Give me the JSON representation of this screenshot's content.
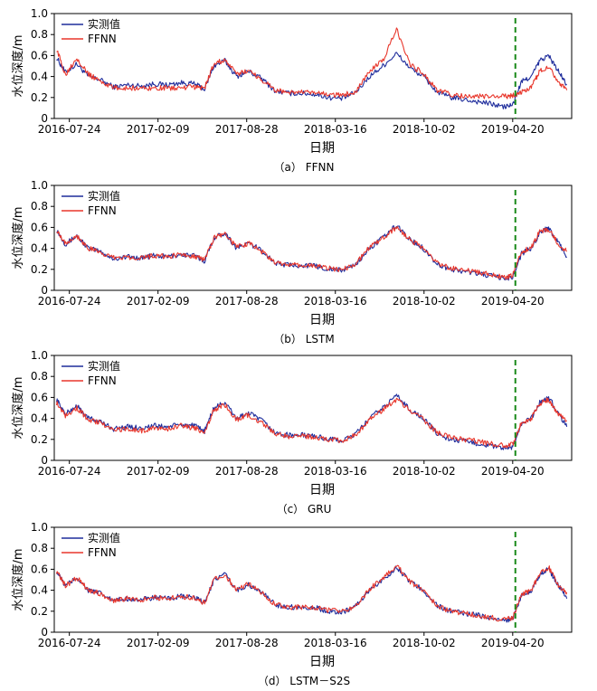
{
  "chart_data": [
    {
      "type": "line",
      "caption": "（a） FFNN",
      "xlabel": "日期",
      "ylabel": "水位深度/m",
      "ylim": [
        0,
        1.0
      ],
      "yticks": [
        "0",
        "0.2",
        "0.4",
        "0.6",
        "0.8",
        "1.0"
      ],
      "x_tick_labels": [
        "2016-07-24",
        "2017-02-09",
        "2017-08-28",
        "2018-03-16",
        "2018-10-02",
        "2019-04-20"
      ],
      "x_range": [
        "2016-06-20",
        "2019-08-31"
      ],
      "split_date": "2019-04-26",
      "legend_position": "top-left",
      "series": [
        {
          "name": "实测值",
          "color": "#1f2d9c",
          "x": [
            "2016-06-25",
            "2016-07-15",
            "2016-08-10",
            "2016-09-05",
            "2016-10-01",
            "2016-11-01",
            "2016-12-01",
            "2017-01-01",
            "2017-02-01",
            "2017-03-01",
            "2017-04-01",
            "2017-05-01",
            "2017-05-25",
            "2017-06-15",
            "2017-07-10",
            "2017-08-05",
            "2017-09-01",
            "2017-10-01",
            "2017-11-01",
            "2017-12-01",
            "2018-01-01",
            "2018-02-01",
            "2018-03-01",
            "2018-04-01",
            "2018-05-01",
            "2018-06-01",
            "2018-07-01",
            "2018-08-01",
            "2018-09-01",
            "2018-10-01",
            "2018-11-01",
            "2018-12-01",
            "2019-01-01",
            "2019-02-01",
            "2019-03-01",
            "2019-04-01",
            "2019-04-20",
            "2019-05-10",
            "2019-06-01",
            "2019-06-20",
            "2019-07-10",
            "2019-08-01",
            "2019-08-20"
          ],
          "values": [
            0.58,
            0.44,
            0.52,
            0.4,
            0.37,
            0.3,
            0.32,
            0.31,
            0.33,
            0.32,
            0.34,
            0.33,
            0.28,
            0.5,
            0.55,
            0.4,
            0.45,
            0.38,
            0.26,
            0.24,
            0.24,
            0.23,
            0.2,
            0.19,
            0.25,
            0.4,
            0.5,
            0.62,
            0.48,
            0.4,
            0.25,
            0.2,
            0.18,
            0.16,
            0.14,
            0.11,
            0.13,
            0.35,
            0.4,
            0.55,
            0.6,
            0.45,
            0.32
          ]
        },
        {
          "name": "FFNN",
          "color": "#e8372c",
          "x": [
            "2016-06-25",
            "2016-07-15",
            "2016-08-10",
            "2016-09-05",
            "2016-10-01",
            "2016-11-01",
            "2016-12-01",
            "2017-01-01",
            "2017-02-01",
            "2017-03-01",
            "2017-04-01",
            "2017-05-01",
            "2017-05-25",
            "2017-06-15",
            "2017-07-10",
            "2017-08-05",
            "2017-09-01",
            "2017-10-01",
            "2017-11-01",
            "2017-12-01",
            "2018-01-01",
            "2018-02-01",
            "2018-03-01",
            "2018-04-01",
            "2018-05-01",
            "2018-06-01",
            "2018-07-01",
            "2018-08-01",
            "2018-09-01",
            "2018-10-01",
            "2018-11-01",
            "2018-12-01",
            "2019-01-01",
            "2019-02-01",
            "2019-03-01",
            "2019-04-01",
            "2019-04-20",
            "2019-05-10",
            "2019-06-01",
            "2019-06-20",
            "2019-07-10",
            "2019-08-01",
            "2019-08-20"
          ],
          "values": [
            0.66,
            0.42,
            0.58,
            0.42,
            0.36,
            0.29,
            0.29,
            0.29,
            0.29,
            0.29,
            0.29,
            0.3,
            0.29,
            0.52,
            0.56,
            0.42,
            0.46,
            0.37,
            0.27,
            0.25,
            0.25,
            0.24,
            0.23,
            0.22,
            0.26,
            0.45,
            0.55,
            0.85,
            0.52,
            0.42,
            0.27,
            0.23,
            0.21,
            0.21,
            0.21,
            0.21,
            0.22,
            0.25,
            0.3,
            0.45,
            0.5,
            0.35,
            0.27
          ]
        }
      ]
    },
    {
      "type": "line",
      "caption": "（b） LSTM",
      "xlabel": "日期",
      "ylabel": "水位深度/m",
      "ylim": [
        0,
        1.0
      ],
      "yticks": [
        "0",
        "0.2",
        "0.4",
        "0.6",
        "0.8",
        "1.0"
      ],
      "x_tick_labels": [
        "2016-07-24",
        "2017-02-09",
        "2017-08-28",
        "2018-03-16",
        "2018-10-02",
        "2019-04-20"
      ],
      "x_range": [
        "2016-06-20",
        "2019-08-31"
      ],
      "split_date": "2019-04-26",
      "legend_position": "top-left",
      "series": [
        {
          "name": "实测值",
          "color": "#1f2d9c",
          "x": [
            "2016-06-25",
            "2016-07-15",
            "2016-08-10",
            "2016-09-05",
            "2016-10-01",
            "2016-11-01",
            "2016-12-01",
            "2017-01-01",
            "2017-02-01",
            "2017-03-01",
            "2017-04-01",
            "2017-05-01",
            "2017-05-25",
            "2017-06-15",
            "2017-07-10",
            "2017-08-05",
            "2017-09-01",
            "2017-10-01",
            "2017-11-01",
            "2017-12-01",
            "2018-01-01",
            "2018-02-01",
            "2018-03-01",
            "2018-04-01",
            "2018-05-01",
            "2018-06-01",
            "2018-07-01",
            "2018-08-01",
            "2018-09-01",
            "2018-10-01",
            "2018-11-01",
            "2018-12-01",
            "2019-01-01",
            "2019-02-01",
            "2019-03-01",
            "2019-04-01",
            "2019-04-20",
            "2019-05-10",
            "2019-06-01",
            "2019-06-20",
            "2019-07-10",
            "2019-08-01",
            "2019-08-20"
          ],
          "values": [
            0.58,
            0.44,
            0.52,
            0.4,
            0.37,
            0.3,
            0.32,
            0.31,
            0.33,
            0.32,
            0.34,
            0.33,
            0.28,
            0.5,
            0.55,
            0.4,
            0.45,
            0.38,
            0.26,
            0.24,
            0.24,
            0.23,
            0.2,
            0.19,
            0.25,
            0.4,
            0.5,
            0.62,
            0.48,
            0.4,
            0.25,
            0.2,
            0.18,
            0.16,
            0.14,
            0.11,
            0.13,
            0.35,
            0.4,
            0.55,
            0.6,
            0.45,
            0.32
          ]
        },
        {
          "name": "FFNN",
          "color": "#e8372c",
          "x": [
            "2016-06-25",
            "2016-07-15",
            "2016-08-10",
            "2016-09-05",
            "2016-10-01",
            "2016-11-01",
            "2016-12-01",
            "2017-01-01",
            "2017-02-01",
            "2017-03-01",
            "2017-04-01",
            "2017-05-01",
            "2017-05-25",
            "2017-06-15",
            "2017-07-10",
            "2017-08-05",
            "2017-09-01",
            "2017-10-01",
            "2017-11-01",
            "2017-12-01",
            "2018-01-01",
            "2018-02-01",
            "2018-03-01",
            "2018-04-01",
            "2018-05-01",
            "2018-06-01",
            "2018-07-01",
            "2018-08-01",
            "2018-09-01",
            "2018-10-01",
            "2018-11-01",
            "2018-12-01",
            "2019-01-01",
            "2019-02-01",
            "2019-03-01",
            "2019-04-01",
            "2019-04-20",
            "2019-05-10",
            "2019-06-01",
            "2019-06-20",
            "2019-07-10",
            "2019-08-01",
            "2019-08-20"
          ],
          "values": [
            0.58,
            0.45,
            0.52,
            0.4,
            0.36,
            0.31,
            0.32,
            0.31,
            0.33,
            0.32,
            0.34,
            0.33,
            0.29,
            0.5,
            0.54,
            0.41,
            0.45,
            0.37,
            0.26,
            0.24,
            0.24,
            0.23,
            0.21,
            0.2,
            0.25,
            0.41,
            0.5,
            0.6,
            0.48,
            0.4,
            0.26,
            0.21,
            0.19,
            0.17,
            0.15,
            0.12,
            0.14,
            0.37,
            0.41,
            0.56,
            0.58,
            0.44,
            0.37
          ]
        }
      ]
    },
    {
      "type": "line",
      "caption": "（c） GRU",
      "xlabel": "日期",
      "ylabel": "水位深度/m",
      "ylim": [
        0,
        1.0
      ],
      "yticks": [
        "0",
        "0.2",
        "0.4",
        "0.6",
        "0.8",
        "1.0"
      ],
      "x_tick_labels": [
        "2016-07-24",
        "2017-02-09",
        "2017-08-28",
        "2018-03-16",
        "2018-10-02",
        "2019-04-20"
      ],
      "x_range": [
        "2016-06-20",
        "2019-08-31"
      ],
      "split_date": "2019-04-26",
      "legend_position": "top-left",
      "series": [
        {
          "name": "实测值",
          "color": "#1f2d9c",
          "x": [
            "2016-06-25",
            "2016-07-15",
            "2016-08-10",
            "2016-09-05",
            "2016-10-01",
            "2016-11-01",
            "2016-12-01",
            "2017-01-01",
            "2017-02-01",
            "2017-03-01",
            "2017-04-01",
            "2017-05-01",
            "2017-05-25",
            "2017-06-15",
            "2017-07-10",
            "2017-08-05",
            "2017-09-01",
            "2017-10-01",
            "2017-11-01",
            "2017-12-01",
            "2018-01-01",
            "2018-02-01",
            "2018-03-01",
            "2018-04-01",
            "2018-05-01",
            "2018-06-01",
            "2018-07-01",
            "2018-08-01",
            "2018-09-01",
            "2018-10-01",
            "2018-11-01",
            "2018-12-01",
            "2019-01-01",
            "2019-02-01",
            "2019-03-01",
            "2019-04-01",
            "2019-04-20",
            "2019-05-10",
            "2019-06-01",
            "2019-06-20",
            "2019-07-10",
            "2019-08-01",
            "2019-08-20"
          ],
          "values": [
            0.58,
            0.44,
            0.52,
            0.4,
            0.37,
            0.3,
            0.32,
            0.31,
            0.33,
            0.32,
            0.34,
            0.33,
            0.28,
            0.5,
            0.55,
            0.4,
            0.45,
            0.38,
            0.26,
            0.24,
            0.24,
            0.23,
            0.2,
            0.19,
            0.25,
            0.4,
            0.5,
            0.62,
            0.48,
            0.4,
            0.25,
            0.2,
            0.18,
            0.16,
            0.14,
            0.11,
            0.13,
            0.35,
            0.4,
            0.55,
            0.6,
            0.45,
            0.32
          ]
        },
        {
          "name": "FFNN",
          "color": "#e8372c",
          "x": [
            "2016-06-25",
            "2016-07-15",
            "2016-08-10",
            "2016-09-05",
            "2016-10-01",
            "2016-11-01",
            "2016-12-01",
            "2017-01-01",
            "2017-02-01",
            "2017-03-01",
            "2017-04-01",
            "2017-05-01",
            "2017-05-25",
            "2017-06-15",
            "2017-07-10",
            "2017-08-05",
            "2017-09-01",
            "2017-10-01",
            "2017-11-01",
            "2017-12-01",
            "2018-01-01",
            "2018-02-01",
            "2018-03-01",
            "2018-04-01",
            "2018-05-01",
            "2018-06-01",
            "2018-07-01",
            "2018-08-01",
            "2018-09-01",
            "2018-10-01",
            "2018-11-01",
            "2018-12-01",
            "2019-01-01",
            "2019-02-01",
            "2019-03-01",
            "2019-04-01",
            "2019-04-20",
            "2019-05-10",
            "2019-06-01",
            "2019-06-20",
            "2019-07-10",
            "2019-08-01",
            "2019-08-20"
          ],
          "values": [
            0.55,
            0.43,
            0.5,
            0.39,
            0.36,
            0.29,
            0.3,
            0.28,
            0.31,
            0.3,
            0.33,
            0.31,
            0.27,
            0.48,
            0.53,
            0.39,
            0.43,
            0.36,
            0.25,
            0.23,
            0.23,
            0.22,
            0.2,
            0.19,
            0.24,
            0.39,
            0.48,
            0.58,
            0.47,
            0.39,
            0.26,
            0.22,
            0.2,
            0.18,
            0.16,
            0.14,
            0.15,
            0.36,
            0.4,
            0.54,
            0.58,
            0.44,
            0.38
          ]
        }
      ]
    },
    {
      "type": "line",
      "caption": "（d） LSTM－S2S",
      "xlabel": "日期",
      "ylabel": "水位深度/m",
      "ylim": [
        0,
        1.0
      ],
      "yticks": [
        "0",
        "0.2",
        "0.4",
        "0.6",
        "0.8",
        "1.0"
      ],
      "x_tick_labels": [
        "2016-07-24",
        "2017-02-09",
        "2017-08-28",
        "2018-03-16",
        "2018-10-02",
        "2019-04-20"
      ],
      "x_range": [
        "2016-06-20",
        "2019-08-31"
      ],
      "split_date": "2019-04-26",
      "legend_position": "top-left",
      "series": [
        {
          "name": "实测值",
          "color": "#1f2d9c",
          "x": [
            "2016-06-25",
            "2016-07-15",
            "2016-08-10",
            "2016-09-05",
            "2016-10-01",
            "2016-11-01",
            "2016-12-01",
            "2017-01-01",
            "2017-02-01",
            "2017-03-01",
            "2017-04-01",
            "2017-05-01",
            "2017-05-25",
            "2017-06-15",
            "2017-07-10",
            "2017-08-05",
            "2017-09-01",
            "2017-10-01",
            "2017-11-01",
            "2017-12-01",
            "2018-01-01",
            "2018-02-01",
            "2018-03-01",
            "2018-04-01",
            "2018-05-01",
            "2018-06-01",
            "2018-07-01",
            "2018-08-01",
            "2018-09-01",
            "2018-10-01",
            "2018-11-01",
            "2018-12-01",
            "2019-01-01",
            "2019-02-01",
            "2019-03-01",
            "2019-04-01",
            "2019-04-20",
            "2019-05-10",
            "2019-06-01",
            "2019-06-20",
            "2019-07-10",
            "2019-08-01",
            "2019-08-20"
          ],
          "values": [
            0.58,
            0.44,
            0.52,
            0.4,
            0.37,
            0.3,
            0.32,
            0.31,
            0.33,
            0.32,
            0.34,
            0.33,
            0.28,
            0.5,
            0.55,
            0.4,
            0.45,
            0.38,
            0.26,
            0.24,
            0.24,
            0.23,
            0.2,
            0.19,
            0.25,
            0.4,
            0.5,
            0.62,
            0.48,
            0.4,
            0.25,
            0.2,
            0.18,
            0.16,
            0.14,
            0.11,
            0.13,
            0.35,
            0.4,
            0.55,
            0.6,
            0.45,
            0.32
          ]
        },
        {
          "name": "FFNN",
          "color": "#e8372c",
          "x": [
            "2016-06-25",
            "2016-07-15",
            "2016-08-10",
            "2016-09-05",
            "2016-10-01",
            "2016-11-01",
            "2016-12-01",
            "2017-01-01",
            "2017-02-01",
            "2017-03-01",
            "2017-04-01",
            "2017-05-01",
            "2017-05-25",
            "2017-06-15",
            "2017-07-10",
            "2017-08-05",
            "2017-09-01",
            "2017-10-01",
            "2017-11-01",
            "2017-12-01",
            "2018-01-01",
            "2018-02-01",
            "2018-03-01",
            "2018-04-01",
            "2018-05-01",
            "2018-06-01",
            "2018-07-01",
            "2018-08-01",
            "2018-09-01",
            "2018-10-01",
            "2018-11-01",
            "2018-12-01",
            "2019-01-01",
            "2019-02-01",
            "2019-03-01",
            "2019-04-01",
            "2019-04-20",
            "2019-05-10",
            "2019-06-01",
            "2019-06-20",
            "2019-07-10",
            "2019-08-01",
            "2019-08-20"
          ],
          "values": [
            0.58,
            0.44,
            0.52,
            0.4,
            0.37,
            0.3,
            0.32,
            0.31,
            0.33,
            0.32,
            0.34,
            0.33,
            0.28,
            0.5,
            0.55,
            0.4,
            0.46,
            0.38,
            0.26,
            0.24,
            0.24,
            0.23,
            0.21,
            0.2,
            0.25,
            0.41,
            0.51,
            0.64,
            0.48,
            0.4,
            0.25,
            0.2,
            0.18,
            0.16,
            0.14,
            0.12,
            0.14,
            0.36,
            0.4,
            0.56,
            0.62,
            0.45,
            0.38
          ]
        }
      ]
    }
  ]
}
